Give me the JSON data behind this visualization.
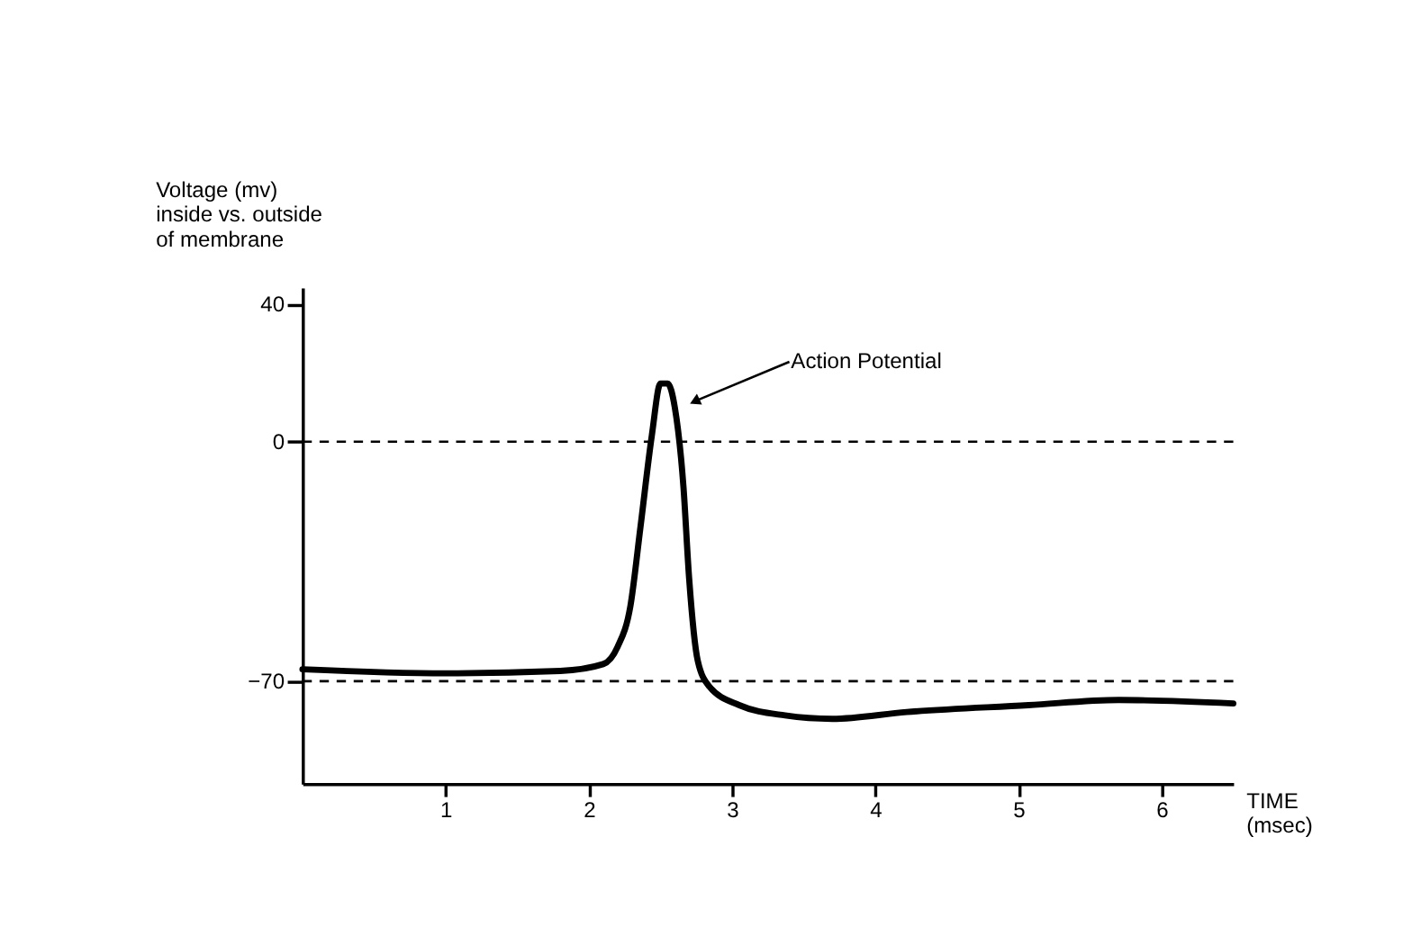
{
  "chart_data": {
    "type": "line",
    "ylabel": "Voltage (mv)\ninside vs. outside\nof membrane",
    "xlabel": "TIME\n(msec)",
    "x": [
      0,
      1,
      1.8,
      2.1,
      2.2,
      2.29,
      2.36,
      2.44,
      2.5,
      2.55,
      2.6,
      2.66,
      2.7,
      2.76,
      2.84,
      3.05,
      3.37,
      3.7,
      4.22,
      5.07,
      5.7,
      6.5
    ],
    "series": [
      {
        "color": "#000000",
        "values": [
          -66.5,
          -67.7,
          -67,
          -65,
          -60,
          -48,
          -25,
          2,
          17,
          17,
          10,
          -13,
          -40,
          -64,
          -71.5,
          -77,
          -80,
          -81,
          -79,
          -77,
          -75.5,
          -76.5
        ]
      }
    ],
    "xlim": [
      0,
      6.5
    ],
    "xticks": [
      1,
      2,
      3,
      4,
      5,
      6
    ],
    "ylim": [
      -100,
      45
    ],
    "yticks": [
      -70,
      0,
      40
    ],
    "ref_lines": [
      {
        "axis": "y",
        "value": 0,
        "color": "#000000",
        "line_style": "dashed"
      },
      {
        "axis": "y",
        "value": -70,
        "color": "#000000",
        "line_style": "dashed"
      }
    ],
    "annotations": [
      {
        "text": "Action Potential",
        "x": 2.75,
        "y": 12
      }
    ],
    "grid": false,
    "marker": "none",
    "line_style": "solid"
  }
}
